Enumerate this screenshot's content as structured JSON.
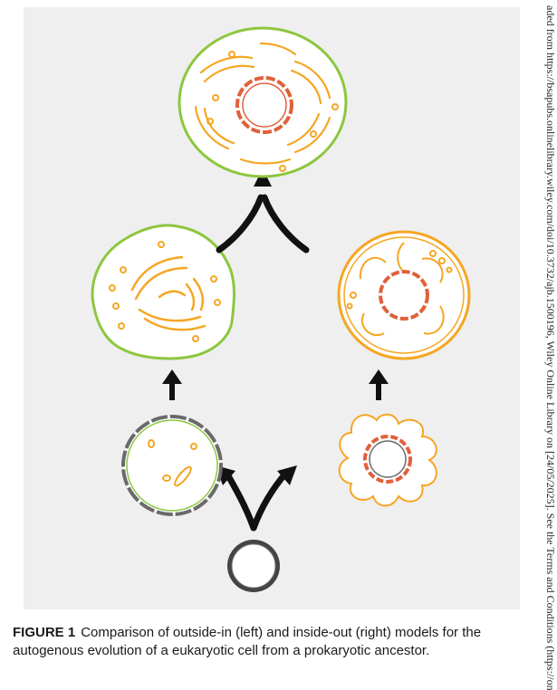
{
  "caption": {
    "label": "FIGURE 1",
    "text": "Comparison of outside-in (left) and inside-out (right) models for the autogenous evolution of a eukaryotic cell from a prokaryotic ancestor."
  },
  "side_note": "aded from https://bsapubs.onlinelibrary.wiley.com/doi/10.3732/ajb.1500196, Wiley Online Library on [24/05/2025]. See the Terms and Conditions (https://onlinelib",
  "colors": {
    "panel_bg": "#efefef",
    "outer_membrane": "#8dc63f",
    "endomembrane": "#f5a623",
    "nucleus": "#e0603a",
    "arrow": "#111111"
  }
}
